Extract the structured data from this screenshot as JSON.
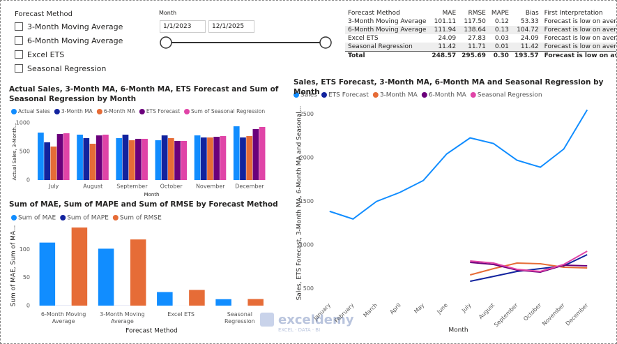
{
  "slicer": {
    "title": "Forecast Method",
    "items": [
      "3-Month Moving Average",
      "6-Month Moving Average",
      "Excel ETS",
      "Seasonal Regression"
    ]
  },
  "date_slicer": {
    "title": "Month",
    "start": "1/1/2023",
    "end": "12/1/2025"
  },
  "table": {
    "columns": [
      "Forecast Method",
      "MAE",
      "RMSE",
      "MAPE",
      "Bias",
      "First Interpretation"
    ],
    "rows": [
      [
        "3-Month Moving Average",
        "101.11",
        "117.50",
        "0.12",
        "53.33",
        "Forecast is low on average"
      ],
      [
        "6-Month Moving Average",
        "111.94",
        "138.64",
        "0.13",
        "104.72",
        "Forecast is low on average"
      ],
      [
        "Excel ETS",
        "24.09",
        "27.83",
        "0.03",
        "24.09",
        "Forecast is low on average"
      ],
      [
        "Seasonal Regression",
        "11.42",
        "11.71",
        "0.01",
        "11.42",
        "Forecast is low on average"
      ]
    ],
    "total": [
      "Total",
      "248.57",
      "295.69",
      "0.30",
      "193.57",
      "Forecast is low on average"
    ]
  },
  "watermark": {
    "name": "exceldemy",
    "tagline": "EXCEL · DATA · BI"
  },
  "chart_data": [
    {
      "type": "bar",
      "title": "Actual Sales, 3-Month MA, 6-Month MA, ETS Forecast and Sum of Seasonal Regression by Month",
      "x_label": "Month",
      "y_label": "Actual Sales, 3-Month...",
      "categories": [
        "July",
        "August",
        "September",
        "October",
        "November",
        "December"
      ],
      "series": [
        {
          "name": "Actual Sales",
          "color": "#118DFF",
          "values": [
            829,
            793,
            732,
            695,
            780,
            939
          ]
        },
        {
          "name": "3-Month MA",
          "color": "#12239E",
          "values": [
            659,
            732,
            793,
            780,
            744,
            744
          ]
        },
        {
          "name": "6-Month MA",
          "color": "#E66C37",
          "values": [
            585,
            634,
            695,
            732,
            744,
            768
          ]
        },
        {
          "name": "ETS Forecast",
          "color": "#6B007B",
          "values": [
            805,
            780,
            720,
            683,
            756,
            890
          ]
        },
        {
          "name": "Sum of Seasonal Regression",
          "color": "#E044A7",
          "values": [
            817,
            793,
            720,
            683,
            768,
            927
          ]
        }
      ],
      "ylim": [
        0,
        1000
      ],
      "yticks": [
        0,
        500,
        1000
      ]
    },
    {
      "type": "line",
      "title": "Sales, ETS Forecast, 3-Month MA, 6-Month MA and Seasonal Regression by Month",
      "x_label": "Month",
      "y_label": "Sales, ETS Forecast, 3-Month MA, 6-Month MA and Seasonal...",
      "categories": [
        "January",
        "February",
        "March",
        "April",
        "May",
        "June",
        "July",
        "August",
        "September",
        "October",
        "November",
        "December"
      ],
      "series": [
        {
          "name": "Sales",
          "color": "#118DFF",
          "values": [
            1385,
            1297,
            1498,
            1602,
            1738,
            2043,
            2227,
            2163,
            1971,
            1891,
            2099,
            2548
          ]
        },
        {
          "name": "ETS Forecast",
          "color": "#12239E",
          "values": [
            null,
            null,
            null,
            null,
            null,
            null,
            583,
            639,
            696,
            728,
            760,
            888
          ]
        },
        {
          "name": "3-Month MA",
          "color": "#E66C37",
          "values": [
            null,
            null,
            null,
            null,
            null,
            null,
            656,
            728,
            792,
            784,
            744,
            736
          ]
        },
        {
          "name": "6-Month MA",
          "color": "#6B007B",
          "values": [
            null,
            null,
            null,
            null,
            null,
            null,
            800,
            776,
            712,
            688,
            768,
            760
          ]
        },
        {
          "name": "Seasonal Regression",
          "color": "#E044A7",
          "values": [
            null,
            null,
            null,
            null,
            null,
            null,
            816,
            792,
            720,
            696,
            776,
            928
          ]
        }
      ],
      "ylim": [
        400,
        2600
      ],
      "yticks": [
        500,
        1000,
        1500,
        2000,
        2500
      ]
    },
    {
      "type": "bar",
      "title": "Sum of MAE, Sum of MAPE and Sum of RMSE by Forecast Method",
      "x_label": "Forecast Method",
      "y_label": "Sum of MAE, Sum of MA...",
      "categories": [
        "6-Month Moving Average",
        "3-Month Moving Average",
        "Excel ETS",
        "Seasonal Regression"
      ],
      "series": [
        {
          "name": "Sum of MAE",
          "color": "#118DFF",
          "values": [
            111.94,
            101.11,
            24.09,
            11.42
          ]
        },
        {
          "name": "Sum of MAPE",
          "color": "#12239E",
          "values": [
            0.13,
            0.12,
            0.03,
            0.01
          ]
        },
        {
          "name": "Sum of RMSE",
          "color": "#E66C37",
          "values": [
            138.64,
            117.5,
            27.83,
            11.71
          ]
        }
      ],
      "ylim": [
        0,
        140
      ],
      "yticks": [
        0,
        50,
        100
      ]
    }
  ]
}
